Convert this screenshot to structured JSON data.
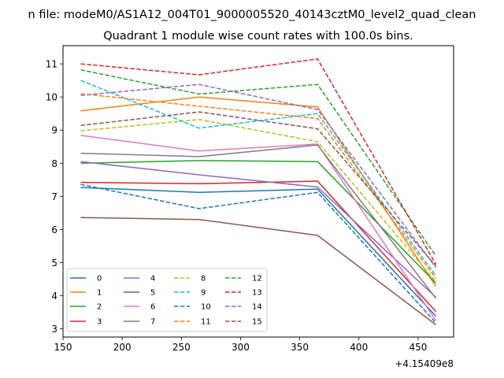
{
  "chart_data": {
    "type": "line",
    "suptitle": "n file: modeM0/AS1A12_004T01_9000005520_40143cztM0_level2_quad_clean",
    "title": "Quadrant 1 module wise count rates with 100.0s bins.",
    "xlabel": "",
    "ylabel": "",
    "x_offset_label": "+4.15409e8",
    "xlim": [
      150,
      480
    ],
    "ylim": [
      2.75,
      11.55
    ],
    "x_ticks": [
      150,
      200,
      250,
      300,
      350,
      400,
      450
    ],
    "y_ticks": [
      3,
      4,
      5,
      6,
      7,
      8,
      9,
      10,
      11
    ],
    "grid": false,
    "legend_position": "lower-left",
    "legend_columns": 4,
    "x": [
      165,
      265,
      365,
      465
    ],
    "series": [
      {
        "name": "0",
        "color": "#1f77b4",
        "dash": "solid",
        "values": [
          7.27,
          7.12,
          7.22,
          3.38
        ]
      },
      {
        "name": "1",
        "color": "#ff7f0e",
        "dash": "solid",
        "values": [
          9.58,
          10.0,
          9.7,
          4.28
        ]
      },
      {
        "name": "2",
        "color": "#2ca02c",
        "dash": "solid",
        "values": [
          8.0,
          8.08,
          8.05,
          4.38
        ]
      },
      {
        "name": "3",
        "color": "#d62728",
        "dash": "solid",
        "values": [
          7.42,
          7.38,
          7.46,
          3.52
        ]
      },
      {
        "name": "4",
        "color": "#9467bd",
        "dash": "solid",
        "values": [
          8.05,
          7.65,
          7.28,
          3.95
        ]
      },
      {
        "name": "5",
        "color": "#8c564b",
        "dash": "solid",
        "values": [
          6.36,
          6.3,
          5.82,
          3.12
        ]
      },
      {
        "name": "6",
        "color": "#e377c2",
        "dash": "solid",
        "values": [
          8.84,
          8.37,
          8.58,
          3.25
        ]
      },
      {
        "name": "7",
        "color": "#7f7f7f",
        "dash": "solid",
        "values": [
          8.3,
          8.2,
          8.55,
          3.92
        ]
      },
      {
        "name": "8",
        "color": "#bcbd22",
        "dash": "dashed",
        "values": [
          8.98,
          9.32,
          8.65,
          4.42
        ]
      },
      {
        "name": "9",
        "color": "#17becf",
        "dash": "dashed",
        "values": [
          10.5,
          9.06,
          9.5,
          4.6
        ]
      },
      {
        "name": "10",
        "color": "#1f77b4",
        "dash": "dashed",
        "values": [
          7.36,
          6.63,
          7.12,
          3.18
        ]
      },
      {
        "name": "11",
        "color": "#ff7f0e",
        "dash": "dashed",
        "values": [
          10.1,
          9.72,
          9.35,
          4.52
        ]
      },
      {
        "name": "12",
        "color": "#2ca02c",
        "dash": "dashed",
        "values": [
          10.82,
          10.09,
          10.38,
          5.2
        ]
      },
      {
        "name": "13",
        "color": "#d62728",
        "dash": "dashed",
        "values": [
          11.0,
          10.67,
          11.15,
          4.95
        ]
      },
      {
        "name": "14",
        "color": "#9467bd",
        "dash": "dashed",
        "values": [
          10.05,
          10.38,
          9.62,
          4.85
        ]
      },
      {
        "name": "15",
        "color": "#8c564b",
        "dash": "dashed",
        "values": [
          9.14,
          9.55,
          9.04,
          4.9
        ]
      }
    ]
  }
}
